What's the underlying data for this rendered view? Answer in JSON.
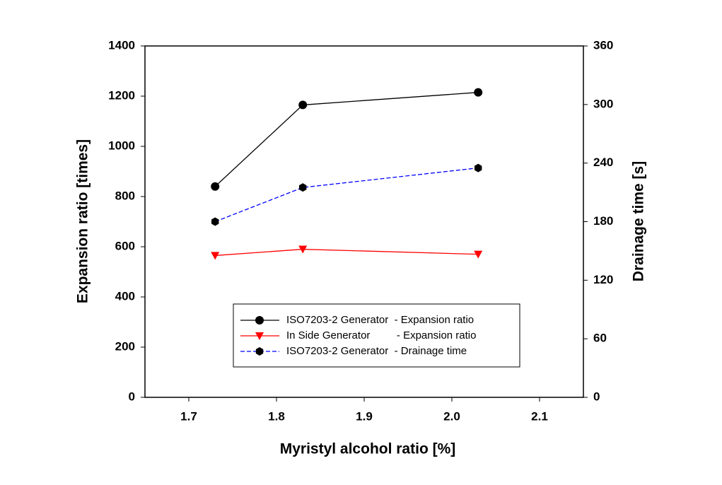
{
  "chart_data": {
    "type": "line",
    "x_label": "Myristyl alcohol ratio [%]",
    "y_label": "Expansion ratio [times]",
    "y2_label": "Drainage time [s]",
    "x": [
      1.73,
      1.83,
      2.03
    ],
    "xlim": [
      1.65,
      2.15
    ],
    "xticks": [
      1.7,
      1.8,
      1.9,
      2.0,
      2.1
    ],
    "ylim": [
      0,
      1400
    ],
    "yticks": [
      0,
      200,
      400,
      600,
      800,
      1000,
      1200,
      1400
    ],
    "y2lim": [
      0,
      360
    ],
    "y2ticks": [
      0,
      60,
      120,
      180,
      240,
      300,
      360
    ],
    "series": [
      {
        "name": "ISO7203-2 Generator  - Expansion ratio",
        "color": "#000000",
        "marker": "circle",
        "dash": false,
        "values": [
          840,
          1165,
          1215
        ]
      },
      {
        "name": "In Side Generator         - Expansion ratio",
        "color": "#ff0000",
        "marker": "triangle-down",
        "dash": false,
        "values": [
          565,
          590,
          570
        ]
      },
      {
        "name": "ISO7203-2 Generator  - Drainage time",
        "color": "#0000ff",
        "marker": "hexagon",
        "dash": true,
        "axis": "y2",
        "values": [
          180,
          215,
          235
        ]
      }
    ]
  }
}
